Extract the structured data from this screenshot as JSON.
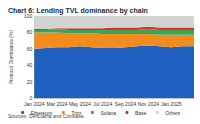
{
  "chart_data": {
    "type": "area",
    "title": "Chart 6: Lending TVL dominance by chain",
    "source": "Sources: DefiLlama and Coinbase.",
    "y_label": "Protocol Dominance (%)",
    "categories": [
      "Jan 2024",
      null,
      "Mar 2024",
      null,
      "May 2024",
      null,
      "Jul 2024",
      null,
      "Sep 2024",
      null,
      "Nov 2024",
      null,
      "Jan 2025",
      null,
      null
    ],
    "series": [
      {
        "name": "Ethereum",
        "color": "#1f5fbf",
        "values": [
          60,
          61,
          62,
          62,
          63,
          62,
          61,
          61,
          62,
          63,
          64,
          63,
          62,
          63,
          63
        ]
      },
      {
        "name": "Tron",
        "color": "#f28c1e",
        "values": [
          20,
          19,
          18,
          17,
          16,
          17,
          17,
          17,
          16,
          15,
          14,
          14,
          15,
          14,
          14
        ]
      },
      {
        "name": "Solana",
        "color": "#3aa655",
        "values": [
          3,
          3,
          4,
          4,
          4,
          4,
          5,
          5,
          5,
          5,
          6,
          6,
          6,
          6,
          6
        ]
      },
      {
        "name": "Base",
        "color": "#d9302c",
        "values": [
          1,
          1,
          1,
          2,
          2,
          2,
          2,
          3,
          3,
          3,
          3,
          3,
          3,
          3,
          3
        ]
      },
      {
        "name": "Others",
        "color": "#d3d3d3",
        "values": [
          16,
          16,
          15,
          15,
          15,
          15,
          15,
          14,
          14,
          14,
          13,
          14,
          14,
          14,
          14
        ]
      }
    ],
    "ylim": [
      0,
      100
    ],
    "yticks": [
      0,
      20,
      40,
      60,
      80,
      100
    ],
    "stacked": true,
    "grid": false,
    "legend": "bottom"
  }
}
